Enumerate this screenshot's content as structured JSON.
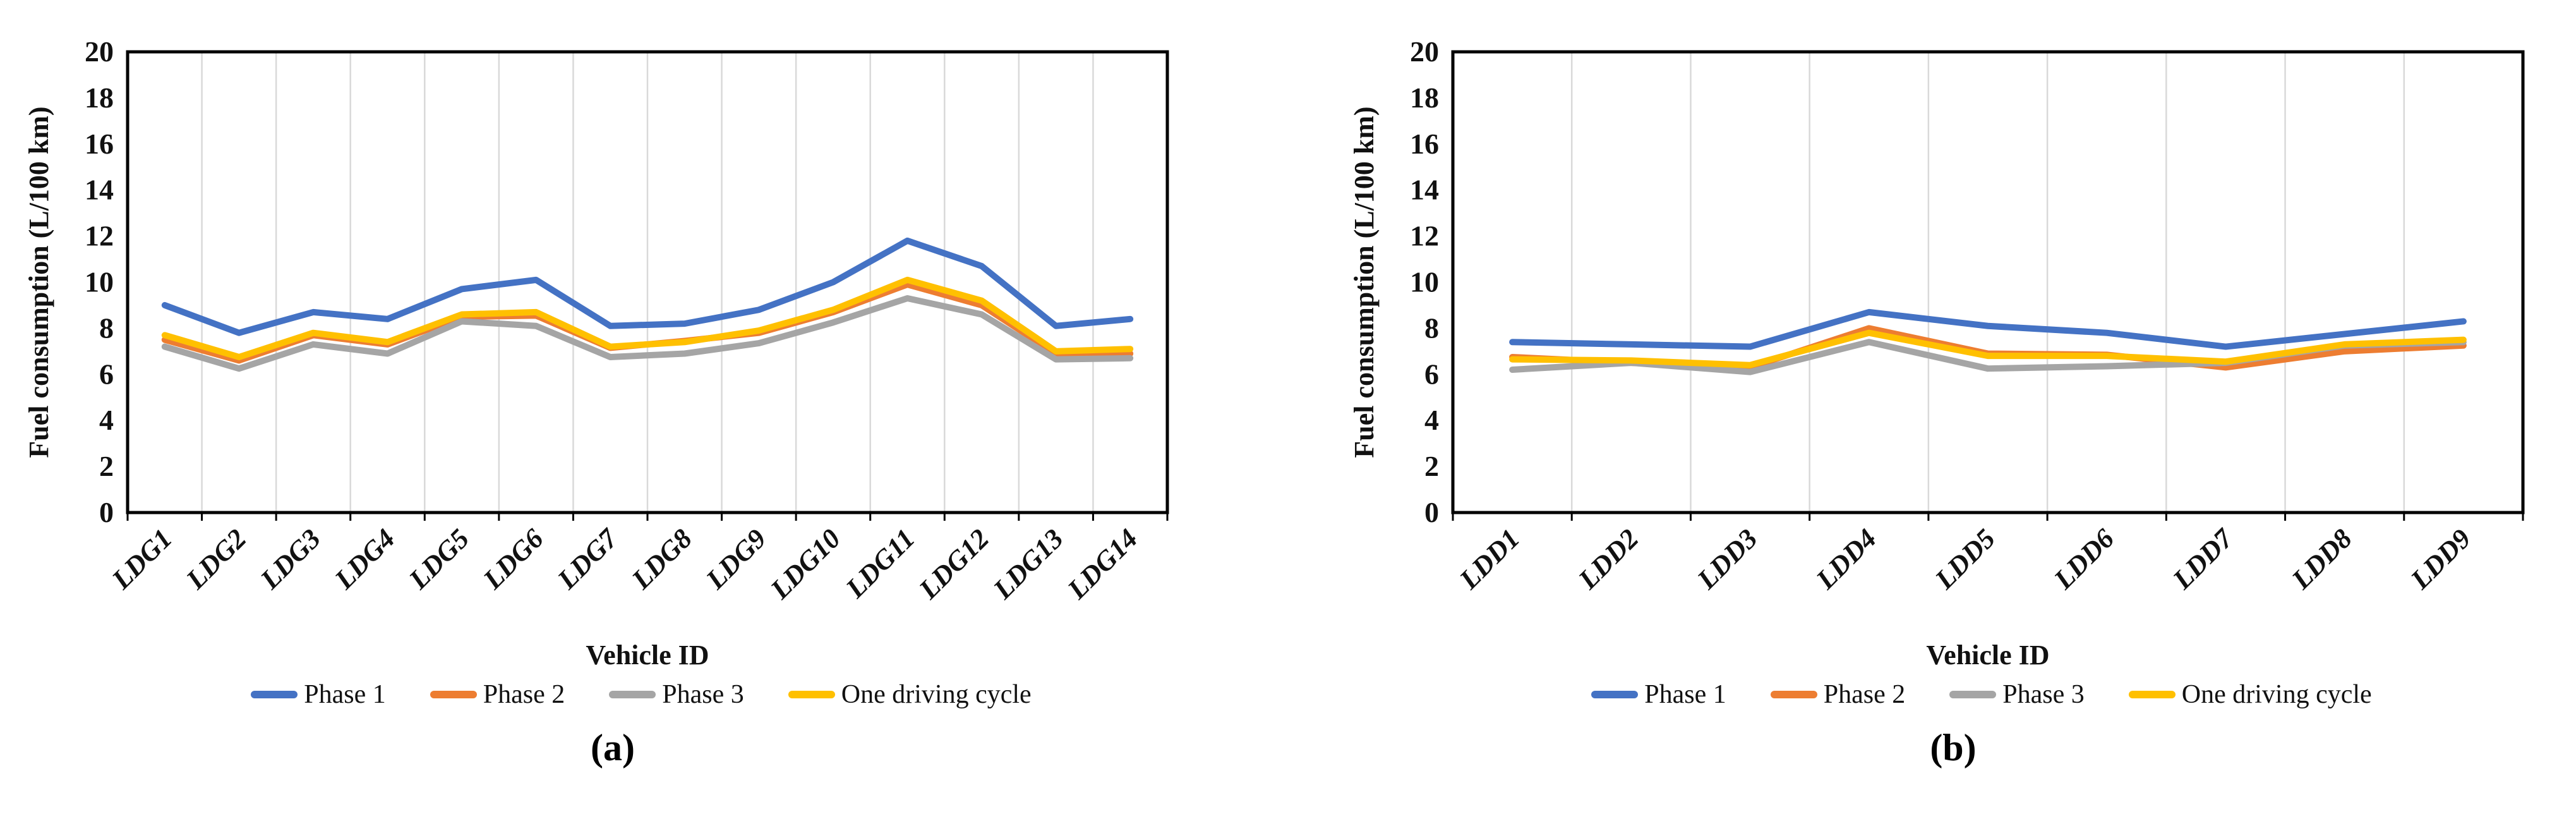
{
  "figure": {
    "panels": [
      {
        "caption": "(a)"
      },
      {
        "caption": "(b)"
      }
    ]
  },
  "chart_data": [
    {
      "type": "line",
      "title": "",
      "xlabel": "Vehicle ID",
      "ylabel": "Fuel consumption (L/100 km)",
      "ylim": [
        0,
        20
      ],
      "ytick_step": 2,
      "grid": "vertical-only",
      "legend_position": "bottom",
      "categories": [
        "LDG1",
        "LDG2",
        "LDG3",
        "LDG4",
        "LDG5",
        "LDG6",
        "LDG7",
        "LDG8",
        "LDG9",
        "LDG10",
        "LDG11",
        "LDG12",
        "LDG13",
        "LDG14"
      ],
      "series": [
        {
          "name": "Phase 1",
          "color": "#4472C4",
          "values": [
            9.0,
            7.8,
            8.7,
            8.4,
            9.7,
            10.1,
            8.1,
            8.2,
            8.8,
            10.0,
            11.8,
            10.7,
            8.1,
            8.4
          ]
        },
        {
          "name": "Phase 2",
          "color": "#ED7D31",
          "values": [
            7.5,
            6.6,
            7.7,
            7.3,
            8.5,
            8.55,
            7.15,
            7.45,
            7.8,
            8.7,
            9.9,
            9.0,
            6.9,
            6.9
          ]
        },
        {
          "name": "Phase 3",
          "color": "#A5A5A5",
          "values": [
            7.2,
            6.25,
            7.3,
            6.9,
            8.3,
            8.1,
            6.75,
            6.9,
            7.35,
            8.25,
            9.3,
            8.6,
            6.65,
            6.7
          ]
        },
        {
          "name": "One driving cycle",
          "color": "#FFC000",
          "values": [
            7.7,
            6.75,
            7.8,
            7.4,
            8.6,
            8.7,
            7.2,
            7.4,
            7.9,
            8.8,
            10.1,
            9.2,
            7.0,
            7.1
          ]
        }
      ]
    },
    {
      "type": "line",
      "title": "",
      "xlabel": "Vehicle ID",
      "ylabel": "Fuel consumption (L/100 km)",
      "ylim": [
        0,
        20
      ],
      "ytick_step": 2,
      "grid": "vertical-only",
      "legend_position": "bottom",
      "categories": [
        "LDD1",
        "LDD2",
        "LDD3",
        "LDD4",
        "LDD5",
        "LDD6",
        "LDD7",
        "LDD8",
        "LDD9"
      ],
      "series": [
        {
          "name": "Phase 1",
          "color": "#4472C4",
          "values": [
            7.4,
            7.3,
            7.2,
            8.7,
            8.1,
            7.8,
            7.2,
            7.75,
            8.3
          ]
        },
        {
          "name": "Phase 2",
          "color": "#ED7D31",
          "values": [
            6.75,
            6.5,
            6.3,
            8.0,
            6.9,
            6.85,
            6.3,
            7.0,
            7.25
          ]
        },
        {
          "name": "Phase 3",
          "color": "#A5A5A5",
          "values": [
            6.2,
            6.5,
            6.1,
            7.4,
            6.25,
            6.35,
            6.5,
            7.25,
            7.4
          ]
        },
        {
          "name": "One driving cycle",
          "color": "#FFC000",
          "values": [
            6.65,
            6.6,
            6.4,
            7.8,
            6.8,
            6.8,
            6.55,
            7.3,
            7.5
          ]
        }
      ]
    }
  ]
}
